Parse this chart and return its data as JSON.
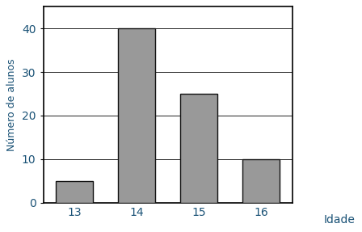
{
  "categories": [
    "13",
    "14",
    "15",
    "16"
  ],
  "values": [
    5,
    40,
    25,
    10
  ],
  "bar_color": "#999999",
  "bar_edgecolor": "#111111",
  "xlabel": "Idade",
  "ylabel": "Número de alunos",
  "ylim": [
    0,
    45
  ],
  "yticks": [
    0,
    10,
    20,
    30,
    40
  ],
  "title": "",
  "background_color": "#ffffff",
  "bar_width": 0.6,
  "tick_label_color": "#1a5276",
  "tick_fontsize": 10,
  "ylabel_fontsize": 9,
  "xlabel_fontsize": 10
}
